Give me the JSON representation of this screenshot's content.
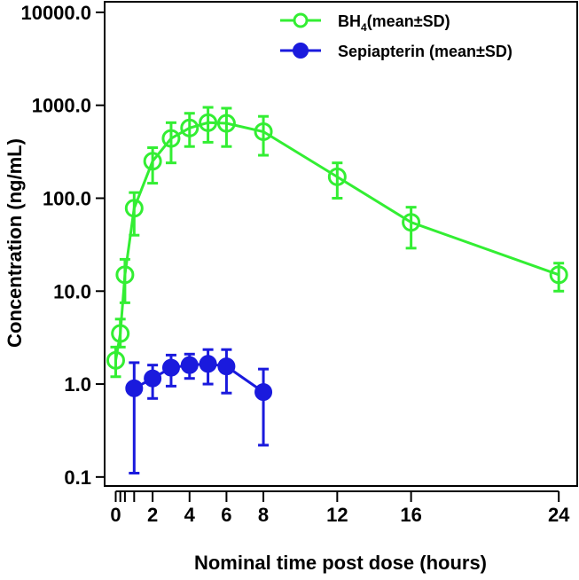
{
  "chart_data": {
    "type": "line",
    "title": "",
    "xlabel": "Nominal time post dose (hours)",
    "ylabel": "Concentration (ng/mL)",
    "yscale": "log",
    "xlim": [
      -0.6,
      25
    ],
    "ylim": [
      0.08,
      13000
    ],
    "xticks": [
      0,
      0.25,
      0.5,
      1,
      2,
      4,
      6,
      8,
      12,
      16,
      24
    ],
    "xtick_labels": [
      "0",
      "",
      "",
      "",
      "2",
      "4",
      "6",
      "8",
      "12",
      "16",
      "24"
    ],
    "yticks": [
      0.1,
      1,
      10,
      100,
      1000,
      10000
    ],
    "ytick_labels": [
      "0.1",
      "1.0",
      "10.0",
      "100.0",
      "1000.0",
      "10000.0"
    ],
    "legend_position": "top-right",
    "series": [
      {
        "name": "BH4(mean±SD)",
        "name_base": "BH",
        "name_sub": "4",
        "name_suffix": "(mean±SD)",
        "color": "#33ee33",
        "marker": "open-circle",
        "x": [
          0,
          0.25,
          0.5,
          1,
          2,
          3,
          4,
          5,
          6,
          8,
          12,
          16,
          24
        ],
        "mean": [
          1.8,
          3.5,
          15,
          78,
          250,
          440,
          570,
          650,
          640,
          520,
          170,
          55,
          15
        ],
        "low": [
          1.2,
          2.5,
          7.5,
          40,
          145,
          240,
          360,
          400,
          360,
          290,
          100,
          29,
          10
        ],
        "high": [
          2.5,
          5,
          22,
          115,
          350,
          650,
          820,
          950,
          930,
          760,
          240,
          80,
          20
        ]
      },
      {
        "name": "Sepiapterin (mean±SD)",
        "color": "#1a1add",
        "marker": "filled-circle",
        "x": [
          1,
          2,
          3,
          4,
          5,
          6,
          8
        ],
        "mean": [
          0.9,
          1.15,
          1.5,
          1.6,
          1.65,
          1.55,
          0.82
        ],
        "low": [
          0.11,
          0.7,
          0.95,
          1.15,
          1.0,
          0.8,
          0.22
        ],
        "high": [
          1.7,
          1.6,
          2.05,
          2.1,
          2.35,
          2.35,
          1.45
        ]
      }
    ]
  }
}
